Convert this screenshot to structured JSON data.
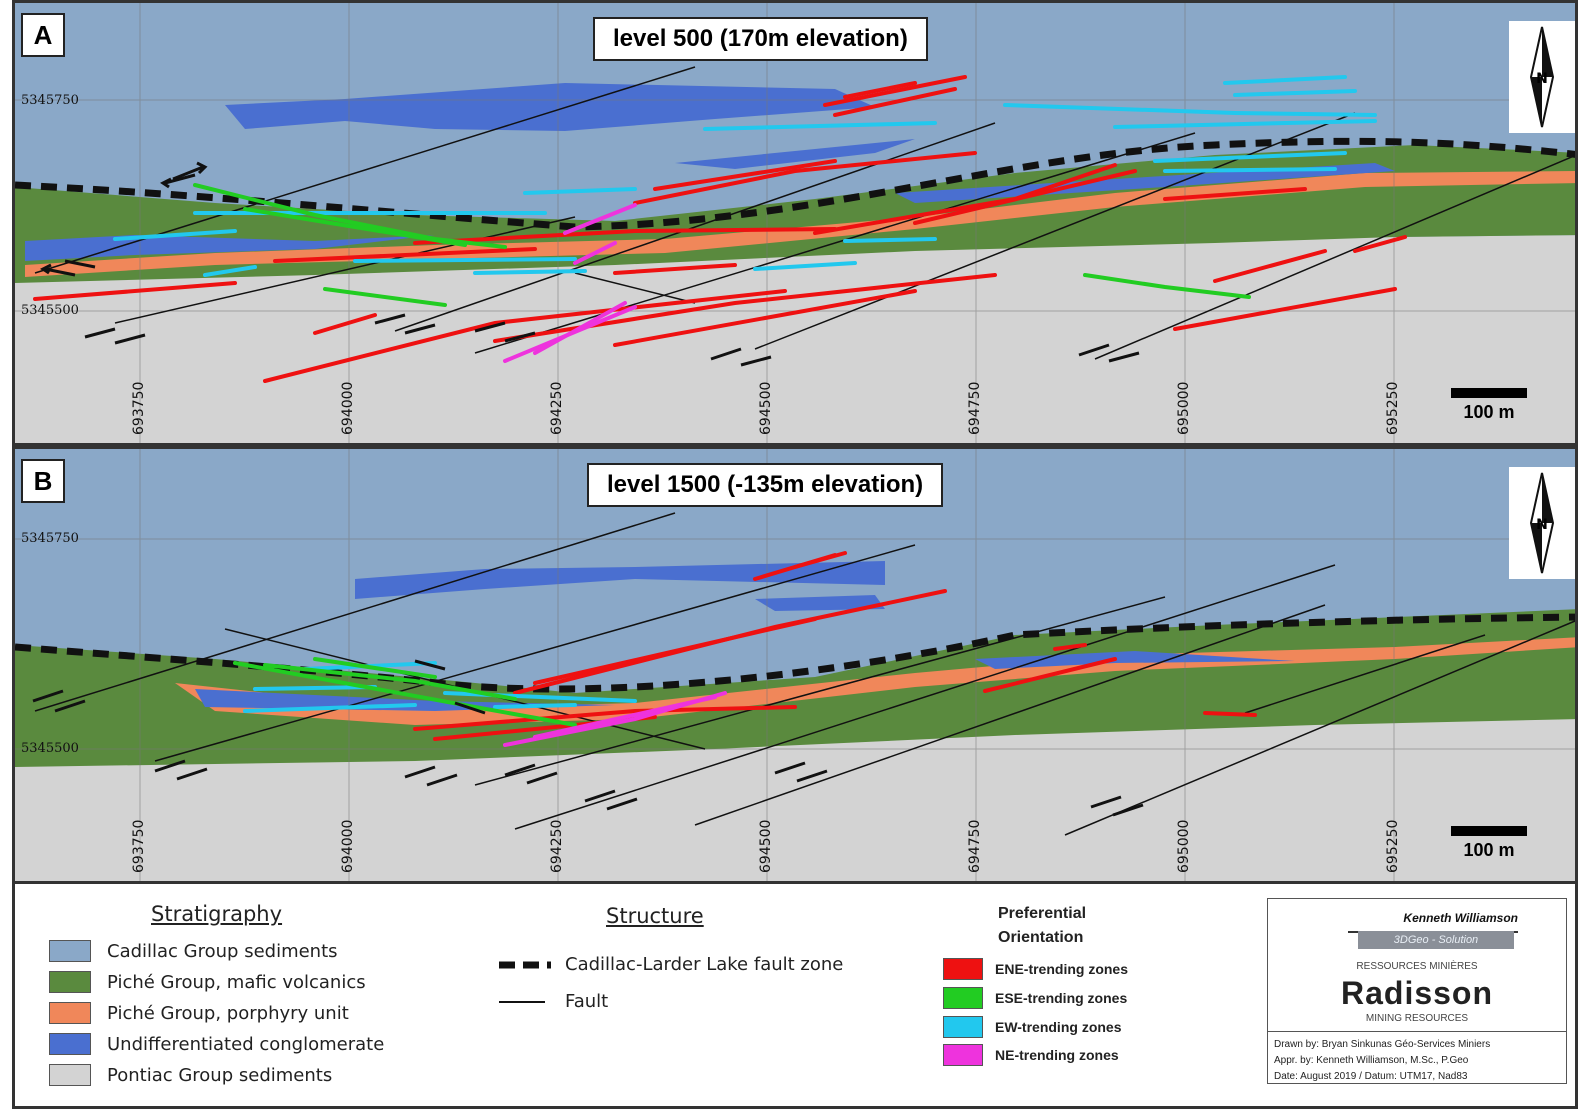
{
  "panels": [
    {
      "letter": "A",
      "title": "level 500 (170m elevation)",
      "northings": [
        "5345750",
        "5345500"
      ],
      "eastings": [
        "693750",
        "694000",
        "694250",
        "694500",
        "694750",
        "695000",
        "695250"
      ],
      "scale_label": "100 m"
    },
    {
      "letter": "B",
      "title": "level 1500 (-135m elevation)",
      "northings": [
        "5345750",
        "5345500"
      ],
      "eastings": [
        "693750",
        "694000",
        "694250",
        "694500",
        "694750",
        "695000",
        "695250"
      ],
      "scale_label": "100 m"
    }
  ],
  "legend": {
    "stratigraphy_title": "Stratigraphy",
    "stratigraphy": [
      {
        "label": "Cadillac Group sediments",
        "color": "#8aa8c8"
      },
      {
        "label": "Piché Group, mafic volcanics",
        "color": "#5a8a3e"
      },
      {
        "label": "Piché Group, porphyry unit",
        "color": "#f0875a"
      },
      {
        "label": "Undifferentiated conglomerate",
        "color": "#4a6fd0"
      },
      {
        "label": "Pontiac Group sediments",
        "color": "#d3d3d3"
      }
    ],
    "structure_title": "Structure",
    "structure": [
      {
        "label": "Cadillac-Larder Lake fault zone",
        "style": "dashed"
      },
      {
        "label": "Fault",
        "style": "solid"
      }
    ],
    "orientation_title": [
      "Preferential",
      "Orientation"
    ],
    "orientation": [
      {
        "label": "ENE-trending zones",
        "color": "#ee1111"
      },
      {
        "label": "ESE-trending zones",
        "color": "#22cc22"
      },
      {
        "label": "EW-trending zones",
        "color": "#22c8ee"
      },
      {
        "label": "NE-trending zones",
        "color": "#ee33dd"
      }
    ]
  },
  "credits": {
    "logo_line1": "Kenneth Williamson",
    "logo_line2": "3DGeo - Solution",
    "radisson_top": "RESSOURCES MINIÈRES",
    "radisson_name": "Radisson",
    "radisson_bottom": "MINING RESOURCES",
    "drawn_by": "Drawn by: Bryan Sinkunas Géo-Services Miniers",
    "approved_by": "Appr. by: Kenneth Williamson, M.Sc., P.Geo",
    "date": "Date: August 2019  /  Datum: UTM17, Nad83"
  }
}
